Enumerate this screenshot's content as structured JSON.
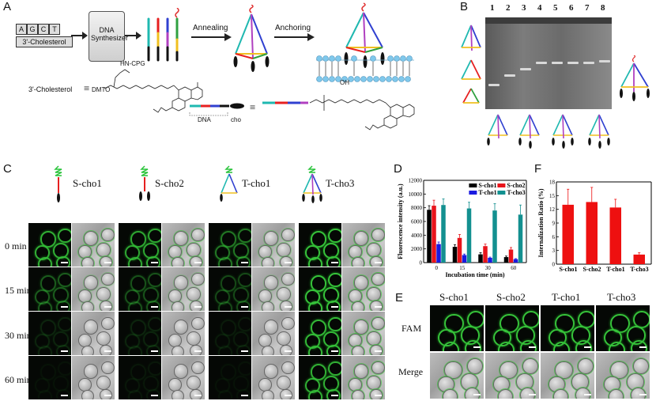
{
  "panel_labels": {
    "a": "A",
    "b": "B",
    "c": "C",
    "d": "D",
    "e": "E",
    "f": "F"
  },
  "panel_a": {
    "bases": [
      "A",
      "G",
      "C",
      "T"
    ],
    "cholesterol_box": "3'-Cholesterol",
    "synthesizer": "DNA Synthesizer",
    "annealing": "Annealing",
    "anchoring": "Anchoring",
    "formula_label": "3'-Cholesterol",
    "formula_eq": "≡",
    "dmto": "DMTO",
    "hn_cpg": "HN-CPG",
    "dna_label": "DNA",
    "cho_label": "cho",
    "oh_label": "OH"
  },
  "panel_b": {
    "lanes": [
      "1",
      "2",
      "3",
      "4",
      "5",
      "6",
      "7",
      "8"
    ]
  },
  "panel_c": {
    "columns": [
      "S-cho1",
      "S-cho2",
      "T-cho1",
      "T-cho3"
    ],
    "rows": [
      "0 min",
      "15 min",
      "30 min",
      "60 min"
    ],
    "brightness": [
      [
        0.9,
        0.85,
        0.6,
        1.0
      ],
      [
        0.45,
        0.4,
        0.35,
        1.0
      ],
      [
        0.15,
        0.15,
        0.1,
        0.95
      ],
      [
        0.05,
        0.08,
        0.05,
        0.9
      ]
    ]
  },
  "panel_e": {
    "columns": [
      "S-cho1",
      "S-cho2",
      "T-cho1",
      "T-cho3"
    ],
    "rows": [
      "FAM",
      "Merge"
    ]
  },
  "chart_data": [
    {
      "type": "bar",
      "panel": "D",
      "title": "",
      "xlabel": "Incubation time (min)",
      "ylabel": "Fluorescence intensity (a.u.)",
      "categories": [
        "0",
        "15",
        "30",
        "60"
      ],
      "ylim": [
        0,
        12000
      ],
      "yticks": [
        "0",
        "2000",
        "4000",
        "6000",
        "8000",
        "10000",
        "12000"
      ],
      "legend_position": "top-right",
      "series": [
        {
          "name": "S-cho1",
          "color": "#000000",
          "values": [
            7700,
            2300,
            1200,
            800
          ],
          "errors": [
            600,
            300,
            250,
            150
          ]
        },
        {
          "name": "S-cho2",
          "color": "#e8141b",
          "values": [
            8300,
            3600,
            2400,
            1900
          ],
          "errors": [
            800,
            500,
            300,
            300
          ]
        },
        {
          "name": "T-cho1",
          "color": "#1a1ae0",
          "values": [
            2700,
            1100,
            700,
            500
          ],
          "errors": [
            300,
            150,
            100,
            80
          ]
        },
        {
          "name": "T-cho3",
          "color": "#139090",
          "values": [
            8400,
            7900,
            7600,
            7000
          ],
          "errors": [
            900,
            900,
            1000,
            1400
          ]
        }
      ]
    },
    {
      "type": "bar",
      "panel": "F",
      "title": "",
      "xlabel": "",
      "ylabel": "Internalization Ratio (%)",
      "categories": [
        "S-cho1",
        "S-cho2",
        "T-cho1",
        "T-cho3"
      ],
      "ylim": [
        0,
        18
      ],
      "yticks": [
        "0",
        "3",
        "6",
        "9",
        "12",
        "15",
        "18"
      ],
      "series": [
        {
          "color": "#ee1010",
          "values": [
            13.0,
            13.6,
            12.4,
            2.1
          ],
          "errors": [
            3.4,
            3.2,
            1.8,
            0.4
          ]
        }
      ]
    }
  ]
}
